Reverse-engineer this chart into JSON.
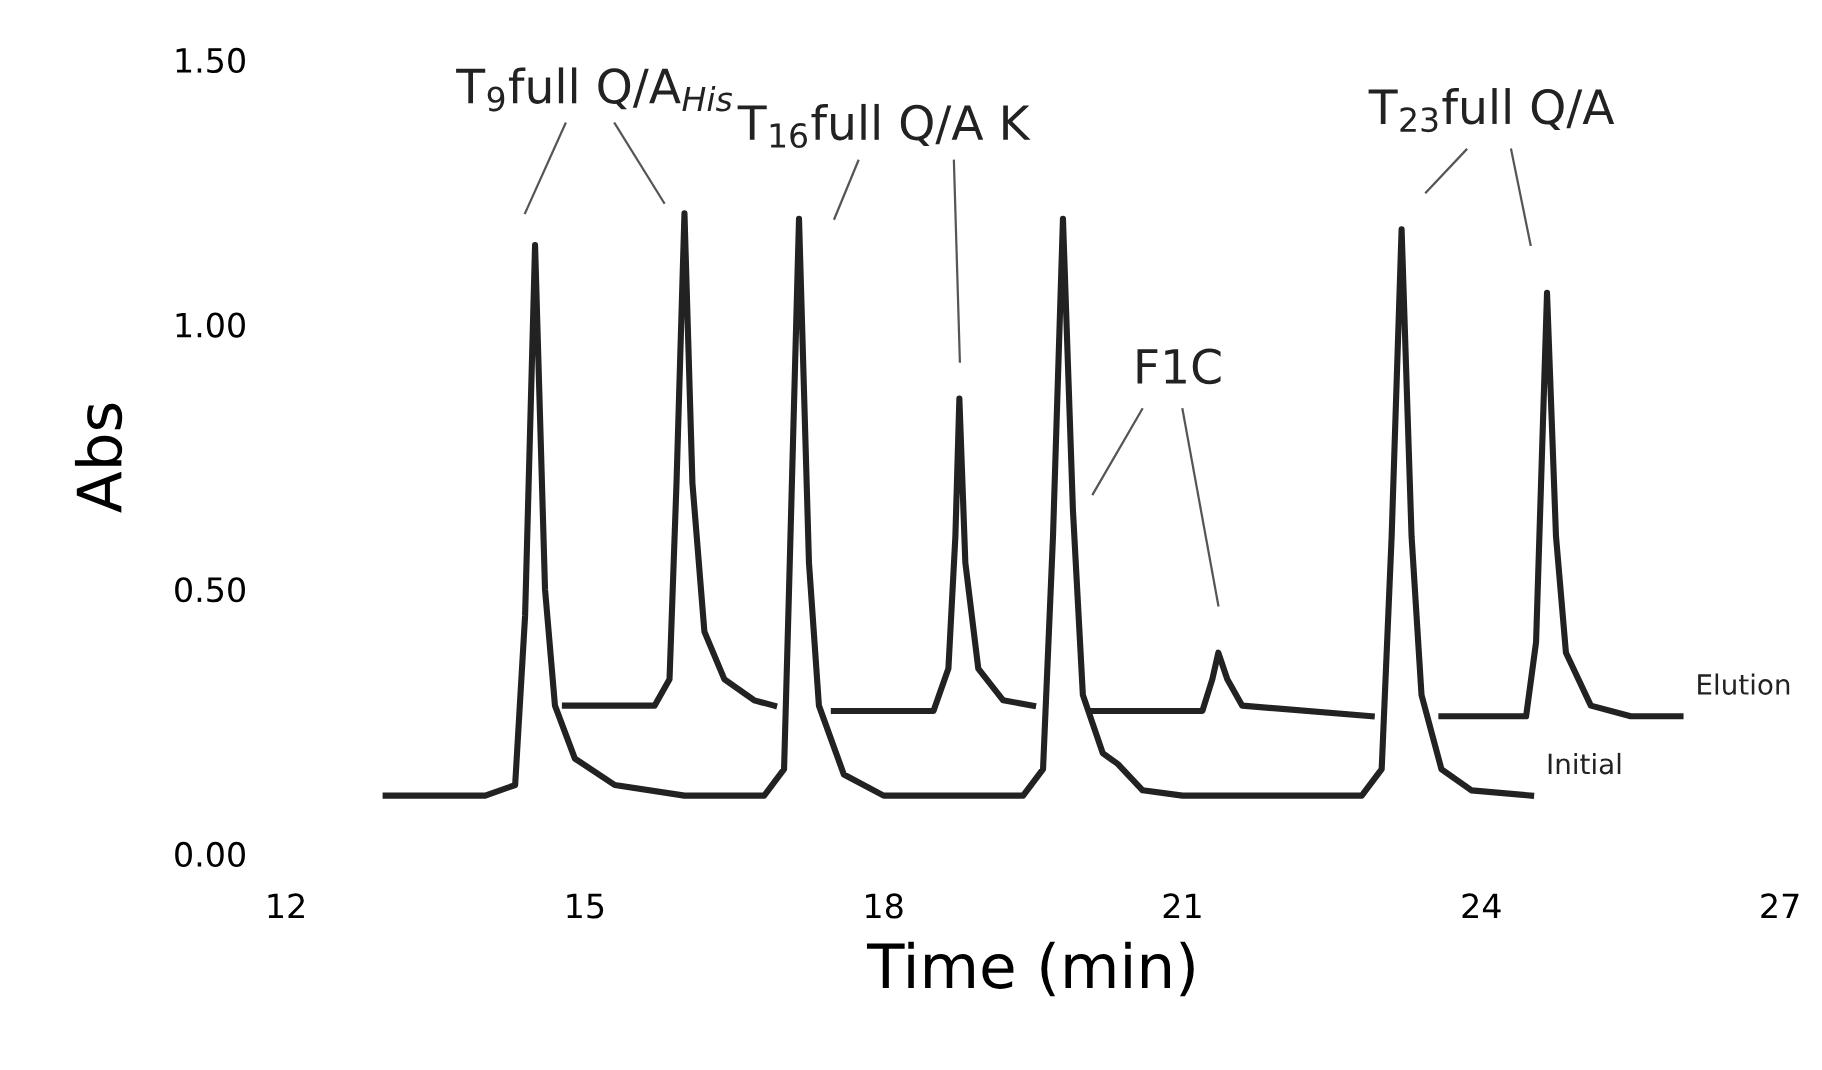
{
  "chart_data": {
    "type": "line",
    "xlabel": "Time (min)",
    "ylabel": "Abs",
    "xlim": [
      12,
      27
    ],
    "xticks": [
      12,
      15,
      18,
      21,
      24,
      27
    ],
    "ylim": [
      0,
      1.5
    ],
    "yticks": [
      {
        "value": 0,
        "label": "0.00"
      },
      {
        "value": 0.5,
        "label": "0.50"
      },
      {
        "value": 1.0,
        "label": "1.00"
      },
      {
        "value": 1.5,
        "label": "1.50"
      }
    ],
    "grid": false,
    "legend": false,
    "marker": "none",
    "line_style": "solid",
    "series": [
      {
        "name": "Initial",
        "color": "#222222",
        "x": [
          13.0,
          14.0,
          14.3,
          14.4,
          14.5,
          14.6,
          14.7,
          14.9,
          15.3,
          16.0,
          16.8,
          17.0,
          17.05,
          17.15,
          17.25,
          17.35,
          17.6,
          18.0,
          19.4,
          19.6,
          19.7,
          19.8,
          19.9,
          20.0,
          20.2,
          20.35,
          20.6,
          21.0,
          22.8,
          23.0,
          23.1,
          23.2,
          23.3,
          23.4,
          23.6,
          23.9,
          24.5
        ],
        "values": [
          0.11,
          0.11,
          0.13,
          0.45,
          1.15,
          0.5,
          0.28,
          0.18,
          0.13,
          0.11,
          0.11,
          0.16,
          0.5,
          1.2,
          0.55,
          0.28,
          0.15,
          0.11,
          0.11,
          0.16,
          0.6,
          1.2,
          0.65,
          0.3,
          0.19,
          0.17,
          0.12,
          0.11,
          0.11,
          0.16,
          0.6,
          1.18,
          0.6,
          0.3,
          0.16,
          0.12,
          0.11
        ]
      },
      {
        "name": "Elution",
        "color": "#222222",
        "x": [
          14.8,
          15.7,
          15.85,
          15.92,
          16.0,
          16.08,
          16.2,
          16.4,
          16.7,
          16.9,
          17.2,
          17.5,
          18.5,
          18.65,
          18.72,
          18.76,
          18.82,
          18.95,
          19.2,
          19.5,
          19.8,
          20.1,
          21.2,
          21.3,
          21.36,
          21.45,
          21.6,
          22.9,
          23.3,
          23.6,
          24.45,
          24.55,
          24.6,
          24.66,
          24.75,
          24.85,
          25.1,
          25.5,
          26.0
        ],
        "values": [
          0.28,
          0.28,
          0.33,
          0.7,
          1.21,
          0.7,
          0.42,
          0.33,
          0.29,
          0.28,
          null,
          0.27,
          0.27,
          0.35,
          0.6,
          0.86,
          0.55,
          0.35,
          0.29,
          0.28,
          null,
          0.27,
          0.27,
          0.33,
          0.38,
          0.33,
          0.28,
          0.26,
          null,
          0.26,
          0.26,
          0.4,
          0.7,
          1.06,
          0.6,
          0.38,
          0.28,
          0.26,
          0.26
        ]
      }
    ],
    "annotations": [
      "T$_{9}$full Q/A$_{His}$",
      "T$_{16}$full Q/A K",
      "F1C",
      "T$_{23}$full Q/A"
    ]
  }
}
